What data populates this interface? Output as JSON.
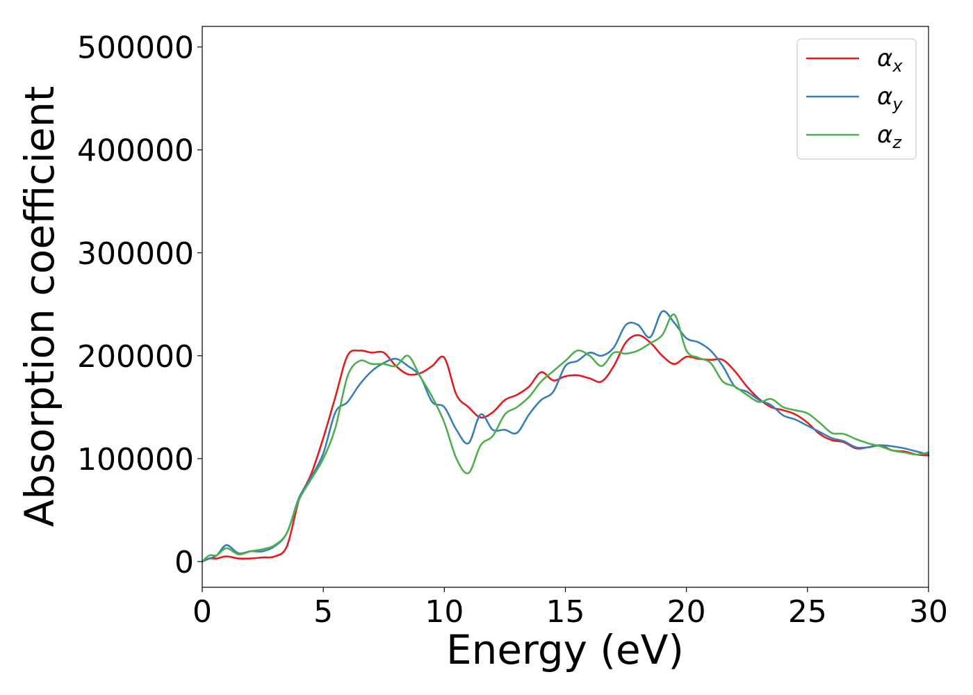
{
  "chart_data": {
    "type": "line",
    "title": "",
    "xlabel": "Energy (eV)",
    "ylabel": "Absorption coefficient",
    "xlim": [
      0,
      30
    ],
    "ylim": [
      -25000,
      520000
    ],
    "xticks": [
      0,
      5,
      10,
      15,
      20,
      25,
      30
    ],
    "yticks": [
      0,
      100000,
      200000,
      300000,
      400000,
      500000
    ],
    "grid": false,
    "legend_position": "top-right",
    "series": [
      {
        "name": "αx",
        "legend_base": "α",
        "legend_sub": "x",
        "color": "#e41a1c",
        "x": [
          0,
          0.3,
          0.6,
          1.0,
          1.5,
          2.0,
          2.5,
          3.0,
          3.5,
          4.0,
          4.5,
          5.0,
          5.5,
          6.0,
          6.5,
          7.0,
          7.5,
          8.0,
          8.5,
          9.0,
          9.5,
          10.0,
          10.5,
          11.0,
          11.5,
          12.0,
          12.5,
          13.0,
          13.5,
          14.0,
          14.5,
          15.0,
          15.5,
          16.0,
          16.5,
          17.0,
          17.5,
          18.0,
          18.5,
          19.0,
          19.5,
          20.0,
          20.5,
          21.0,
          21.5,
          22.0,
          22.5,
          23.0,
          23.5,
          24.0,
          24.5,
          25.0,
          25.5,
          26.0,
          26.5,
          27.0,
          27.5,
          28.0,
          28.5,
          29.0,
          29.5,
          30.0
        ],
        "y": [
          0,
          3000,
          3000,
          5000,
          3000,
          3000,
          4000,
          5000,
          15000,
          60000,
          85000,
          120000,
          160000,
          200000,
          205000,
          203000,
          203000,
          190000,
          182000,
          183000,
          190000,
          198000,
          162000,
          150000,
          140000,
          145000,
          157000,
          162000,
          170000,
          184000,
          176000,
          180000,
          181000,
          178000,
          175000,
          190000,
          213000,
          220000,
          213000,
          200000,
          192000,
          199000,
          197000,
          196000,
          196000,
          185000,
          170000,
          158000,
          150000,
          147000,
          143000,
          135000,
          124000,
          118000,
          116000,
          110000,
          111000,
          113000,
          108000,
          107000,
          104000,
          103000
        ]
      },
      {
        "name": "αy",
        "legend_base": "α",
        "legend_sub": "y",
        "color": "#377eb8",
        "x": [
          0,
          0.3,
          0.6,
          1.0,
          1.5,
          2.0,
          2.5,
          3.0,
          3.5,
          4.0,
          4.5,
          5.0,
          5.5,
          6.0,
          6.5,
          7.0,
          7.5,
          8.0,
          8.5,
          9.0,
          9.5,
          10.0,
          10.5,
          11.0,
          11.5,
          12.0,
          12.5,
          13.0,
          13.5,
          14.0,
          14.5,
          15.0,
          15.5,
          16.0,
          16.5,
          17.0,
          17.5,
          18.0,
          18.5,
          19.0,
          19.5,
          20.0,
          20.5,
          21.0,
          21.5,
          22.0,
          22.5,
          23.0,
          23.5,
          24.0,
          24.5,
          25.0,
          25.5,
          26.0,
          26.5,
          27.0,
          27.5,
          28.0,
          28.5,
          29.0,
          29.5,
          30.0
        ],
        "y": [
          0,
          3000,
          6000,
          16000,
          8000,
          10000,
          10000,
          15000,
          28000,
          62000,
          82000,
          105000,
          145000,
          155000,
          172000,
          185000,
          193000,
          197000,
          190000,
          180000,
          155000,
          150000,
          128000,
          115000,
          143000,
          128000,
          128000,
          125000,
          143000,
          157000,
          165000,
          190000,
          195000,
          203000,
          200000,
          208000,
          230000,
          230000,
          218000,
          243000,
          232000,
          217000,
          213000,
          205000,
          190000,
          170000,
          165000,
          157000,
          152000,
          142000,
          138000,
          132000,
          126000,
          120000,
          117000,
          111000,
          111000,
          113000,
          112000,
          110000,
          107000,
          104000
        ]
      },
      {
        "name": "αz",
        "legend_base": "α",
        "legend_sub": "z",
        "color": "#4daf4a",
        "x": [
          0,
          0.3,
          0.6,
          1.0,
          1.5,
          2.0,
          2.5,
          3.0,
          3.5,
          4.0,
          4.5,
          5.0,
          5.5,
          6.0,
          6.5,
          7.0,
          7.5,
          8.0,
          8.5,
          9.0,
          9.5,
          10.0,
          10.5,
          11.0,
          11.5,
          12.0,
          12.5,
          13.0,
          13.5,
          14.0,
          14.5,
          15.0,
          15.5,
          16.0,
          16.5,
          17.0,
          17.5,
          18.0,
          18.5,
          19.0,
          19.5,
          20.0,
          20.5,
          21.0,
          21.5,
          22.0,
          22.5,
          23.0,
          23.5,
          24.0,
          24.5,
          25.0,
          25.5,
          26.0,
          26.5,
          27.0,
          27.5,
          28.0,
          28.5,
          29.0,
          29.5,
          30.0
        ],
        "y": [
          0,
          6000,
          6000,
          13000,
          7000,
          10000,
          12000,
          16000,
          28000,
          60000,
          80000,
          100000,
          130000,
          180000,
          195000,
          192000,
          192000,
          190000,
          200000,
          180000,
          160000,
          135000,
          100000,
          86000,
          113000,
          122000,
          143000,
          150000,
          160000,
          175000,
          185000,
          195000,
          205000,
          200000,
          190000,
          203000,
          202000,
          205000,
          212000,
          220000,
          240000,
          205000,
          198000,
          193000,
          175000,
          170000,
          162000,
          155000,
          158000,
          150000,
          147000,
          144000,
          135000,
          125000,
          124000,
          119000,
          115000,
          112000,
          108000,
          106000,
          104000,
          106000
        ]
      }
    ]
  }
}
